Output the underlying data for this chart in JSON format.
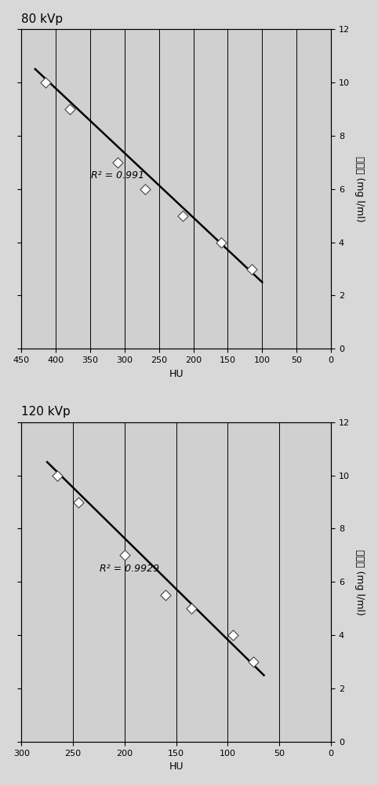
{
  "plots": [
    {
      "title": "80 kVp",
      "r2_label": "R² = 0.991",
      "r2_pos_x": 310,
      "r2_pos_y": 6.5,
      "xlabel": "HU",
      "ylabel": "碎浓度 (mg l/ml)",
      "xlim": [
        450,
        0
      ],
      "ylim": [
        0,
        12
      ],
      "xticks": [
        450,
        400,
        350,
        300,
        250,
        200,
        150,
        100,
        50,
        0
      ],
      "yticks": [
        0,
        2,
        4,
        6,
        8,
        10,
        12
      ],
      "data_x": [
        415,
        380,
        310,
        270,
        215,
        160,
        115
      ],
      "data_y": [
        10.0,
        9.0,
        7.0,
        6.0,
        5.0,
        4.0,
        3.0
      ],
      "fit_x": [
        430,
        100
      ],
      "fit_y": [
        10.5,
        2.5
      ],
      "vlines": [
        400,
        350,
        300,
        250,
        200,
        150,
        100,
        50,
        0
      ]
    },
    {
      "title": "120 kVp",
      "r2_label": "R² = 0.9929",
      "r2_pos_x": 195,
      "r2_pos_y": 6.5,
      "xlabel": "HU",
      "ylabel": "碎浓度 (mg l/ml)",
      "xlim": [
        300,
        0
      ],
      "ylim": [
        0,
        12
      ],
      "xticks": [
        300,
        250,
        200,
        150,
        100,
        50,
        0
      ],
      "yticks": [
        0,
        2,
        4,
        6,
        8,
        10,
        12
      ],
      "data_x": [
        265,
        245,
        200,
        160,
        135,
        95,
        75
      ],
      "data_y": [
        10.0,
        9.0,
        7.0,
        5.5,
        5.0,
        4.0,
        3.0
      ],
      "fit_x": [
        275,
        65
      ],
      "fit_y": [
        10.5,
        2.5
      ],
      "vlines": [
        250,
        200,
        150,
        100,
        50,
        0
      ]
    }
  ],
  "bg_color": "#d8d8d8",
  "plot_bg": "#d0d0d0",
  "line_color": "#000000",
  "marker_facecolor": "#ffffff",
  "marker_edgecolor": "#444444",
  "marker_size": 45,
  "marker_lw": 0.8,
  "fit_lw": 1.8,
  "vline_color": "#000000",
  "vline_lw": 0.7,
  "fontsize_title": 11,
  "fontsize_label": 9,
  "fontsize_tick": 8,
  "fontsize_annot": 9
}
